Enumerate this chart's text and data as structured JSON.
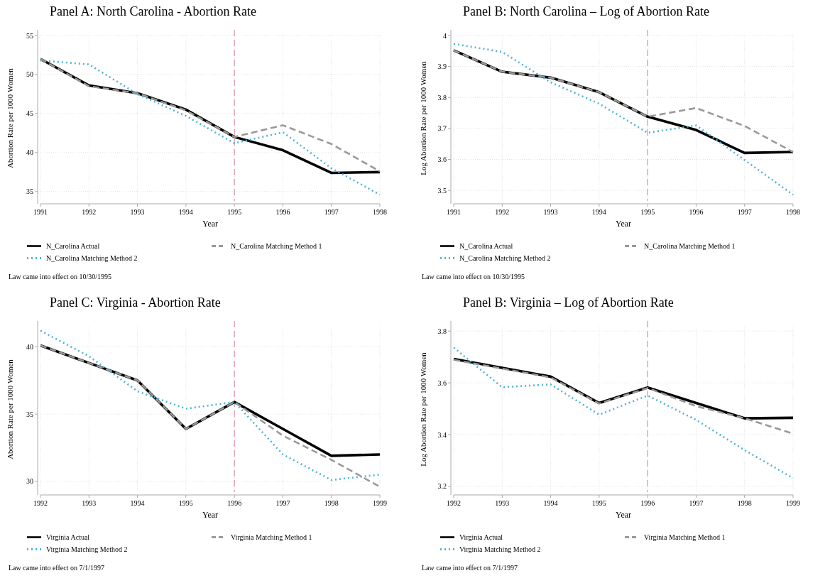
{
  "chart_data": [
    {
      "type": "line",
      "title": "Panel A: North Carolina - Abortion Rate",
      "xlabel": "Year",
      "ylabel": "Abortion Rate per 1000 Women",
      "x": [
        1991,
        1992,
        1993,
        1994,
        1995,
        1996,
        1997,
        1998
      ],
      "xlim": [
        1991,
        1998
      ],
      "xticks": [
        1991,
        1992,
        1993,
        1994,
        1995,
        1996,
        1997,
        1998
      ],
      "ylim": [
        33.8,
        55
      ],
      "yticks": [
        35,
        40,
        45,
        50,
        55
      ],
      "grid": true,
      "legend": "bottom",
      "annotations": [
        "Law came into effect on 10/30/1995"
      ],
      "ref_lines": [
        {
          "axis": "x",
          "value": 1995,
          "color": "#d98fa8",
          "line_style": "dashed"
        }
      ],
      "series": [
        {
          "name": "N_Carolina Actual",
          "color": "#000000",
          "line_style": "solid",
          "values": [
            52.0,
            48.6,
            47.6,
            45.5,
            42.0,
            40.3,
            37.4,
            37.5
          ]
        },
        {
          "name": "N_Carolina Matching Method 1",
          "color": "#999999",
          "line_style": "dashed",
          "values": [
            52.0,
            48.5,
            47.6,
            45.4,
            42.0,
            43.5,
            41.1,
            37.6
          ]
        },
        {
          "name": "N_Carolina Matching Method 2",
          "color": "#4fb3d9",
          "line_style": "dotted",
          "values": [
            51.8,
            51.3,
            47.5,
            44.7,
            41.2,
            42.6,
            38.0,
            34.6
          ]
        }
      ]
    },
    {
      "type": "line",
      "title": "Panel B: North Carolina – Log of Abortion Rate",
      "xlabel": "Year",
      "ylabel": "Log Abortion Rate per 1000 Women",
      "x": [
        1991,
        1992,
        1993,
        1994,
        1995,
        1996,
        1997,
        1998
      ],
      "xlim": [
        1991,
        1998
      ],
      "xticks": [
        1991,
        1992,
        1993,
        1994,
        1995,
        1996,
        1997,
        1998
      ],
      "ylim": [
        3.466,
        4
      ],
      "yticks": [
        3.5,
        3.6,
        3.7,
        3.8,
        3.9,
        4
      ],
      "grid": true,
      "legend": "bottom",
      "annotations": [
        "Law came into effect on 10/30/1995"
      ],
      "ref_lines": [
        {
          "axis": "x",
          "value": 1995,
          "color": "#d98fa8",
          "line_style": "dashed"
        }
      ],
      "series": [
        {
          "name": "N_Carolina Actual",
          "color": "#000000",
          "line_style": "solid",
          "values": [
            3.952,
            3.883,
            3.864,
            3.817,
            3.738,
            3.695,
            3.621,
            3.624
          ]
        },
        {
          "name": "N_Carolina Matching Method 1",
          "color": "#999999",
          "line_style": "dashed",
          "values": [
            3.952,
            3.883,
            3.864,
            3.817,
            3.738,
            3.766,
            3.708,
            3.624
          ]
        },
        {
          "name": "N_Carolina Matching Method 2",
          "color": "#4fb3d9",
          "line_style": "dotted",
          "values": [
            3.973,
            3.947,
            3.849,
            3.78,
            3.686,
            3.71,
            3.598,
            3.486
          ]
        }
      ]
    },
    {
      "type": "line",
      "title": "Panel C: Virginia - Abortion Rate",
      "xlabel": "Year",
      "ylabel": "Abortion Rate per 1000 Women",
      "x": [
        1992,
        1993,
        1994,
        1995,
        1996,
        1997,
        1998,
        1999
      ],
      "xlim": [
        1992,
        1999
      ],
      "xticks": [
        1992,
        1993,
        1994,
        1995,
        1996,
        1997,
        1998,
        1999
      ],
      "ylim": [
        29.2,
        41.5
      ],
      "yticks": [
        30,
        35,
        40
      ],
      "grid": true,
      "legend": "bottom",
      "annotations": [
        "Law came into effect on 7/1/1997"
      ],
      "ref_lines": [
        {
          "axis": "x",
          "value": 1996,
          "color": "#d98fa8",
          "line_style": "dashed"
        }
      ],
      "series": [
        {
          "name": "Virginia Actual",
          "color": "#000000",
          "line_style": "solid",
          "values": [
            40.1,
            38.8,
            37.5,
            33.9,
            35.9,
            33.9,
            31.9,
            32.0
          ]
        },
        {
          "name": "Virginia Matching Method 1",
          "color": "#999999",
          "line_style": "dashed",
          "values": [
            40.1,
            38.8,
            37.5,
            33.9,
            35.9,
            33.4,
            31.6,
            29.6
          ]
        },
        {
          "name": "Virginia Matching Method 2",
          "color": "#4fb3d9",
          "line_style": "dotted",
          "values": [
            41.2,
            39.3,
            36.7,
            35.4,
            35.9,
            32.0,
            30.1,
            30.5
          ]
        }
      ]
    },
    {
      "type": "line",
      "title": "Panel B: Virginia – Log of Abortion Rate",
      "xlabel": "Year",
      "ylabel": "Log Abortion Rate per 1000 Women",
      "x": [
        1992,
        1993,
        1994,
        1995,
        1996,
        1997,
        1998,
        1999
      ],
      "xlim": [
        1992,
        1999
      ],
      "xticks": [
        1992,
        1993,
        1994,
        1995,
        1996,
        1997,
        1998,
        1999
      ],
      "ylim": [
        3.178,
        3.817
      ],
      "yticks": [
        3.2,
        3.4,
        3.6,
        3.8
      ],
      "grid": true,
      "legend": "bottom",
      "annotations": [
        "Law came into effect on 7/1/1997"
      ],
      "ref_lines": [
        {
          "axis": "x",
          "value": 1996,
          "color": "#d98fa8",
          "line_style": "dashed"
        }
      ],
      "series": [
        {
          "name": "Virginia Actual",
          "color": "#000000",
          "line_style": "solid",
          "values": [
            3.692,
            3.658,
            3.624,
            3.522,
            3.582,
            3.522,
            3.463,
            3.465
          ]
        },
        {
          "name": "Virginia Matching Method 1",
          "color": "#999999",
          "line_style": "dashed",
          "values": [
            3.689,
            3.655,
            3.621,
            3.52,
            3.58,
            3.51,
            3.463,
            3.404
          ]
        },
        {
          "name": "Virginia Matching Method 2",
          "color": "#4fb3d9",
          "line_style": "dotted",
          "values": [
            3.736,
            3.583,
            3.594,
            3.477,
            3.551,
            3.457,
            3.34,
            3.232
          ]
        }
      ]
    }
  ]
}
